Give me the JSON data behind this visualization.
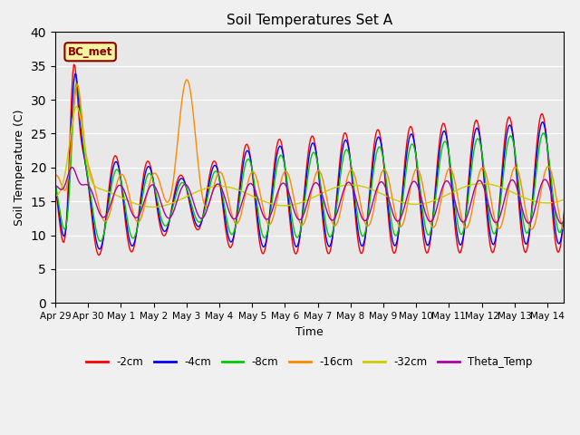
{
  "title": "Soil Temperatures Set A",
  "xlabel": "Time",
  "ylabel": "Soil Temperature (C)",
  "ylim": [
    0,
    40
  ],
  "annotation": "BC_met",
  "bg_color": "#e8e8e8",
  "fig_bg": "#f0f0f0",
  "series_colors": {
    "-2cm": "#ff0000",
    "-4cm": "#0000ff",
    "-8cm": "#00cc00",
    "-16cm": "#ff8800",
    "-32cm": "#cccc00",
    "Theta_Temp": "#aa00aa"
  },
  "x_tick_labels": [
    "Apr 29",
    "Apr 30",
    "May 1",
    "May 2",
    "May 3",
    "May 4",
    "May 5",
    "May 6",
    "May 7",
    "May 8",
    "May 9",
    "May 10",
    "May 11",
    "May 12",
    "May 13",
    "May 14"
  ],
  "yticks": [
    0,
    5,
    10,
    15,
    20,
    25,
    30,
    35,
    40
  ],
  "n_points": 480,
  "time_days": 16.0
}
